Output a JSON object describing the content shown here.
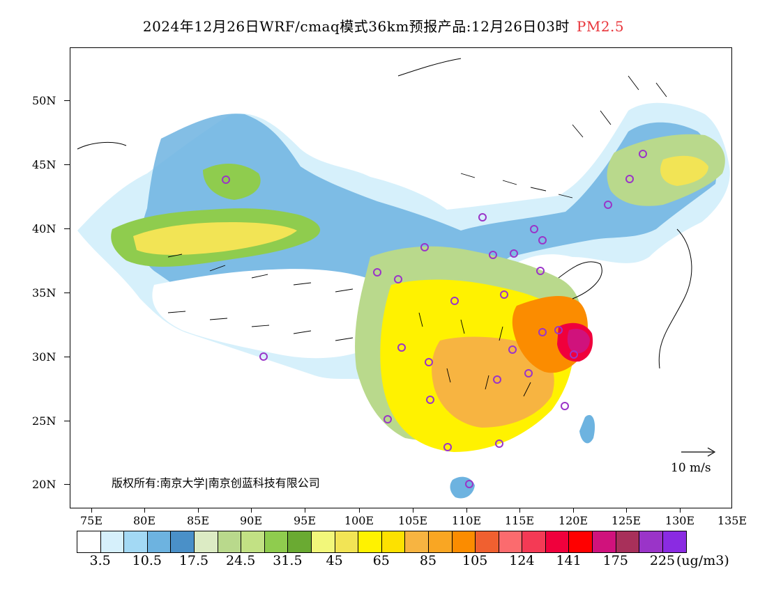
{
  "header": {
    "title": "2024年12月26日WRF/cmaq模式36km预报产品:12月26日03时",
    "pollutant": "PM2.5"
  },
  "axes": {
    "lat_labels": [
      "50N",
      "45N",
      "40N",
      "35N",
      "30N",
      "25N",
      "20N"
    ],
    "lon_labels": [
      "75E",
      "80E",
      "85E",
      "90E",
      "95E",
      "100E",
      "105E",
      "110E",
      "115E",
      "120E",
      "125E",
      "130E",
      "135E"
    ]
  },
  "legend": {
    "colors": [
      "#ffffff",
      "#d6f0fb",
      "#a3d9f4",
      "#6db3e0",
      "#4a90c8",
      "#dcebc4",
      "#b9d98c",
      "#c2e184",
      "#8fcc4e",
      "#6aaa32",
      "#f2f77a",
      "#f2e455",
      "#fff200",
      "#fde100",
      "#f7b441",
      "#f9a623",
      "#fb8c00",
      "#f06030",
      "#fb6b6e",
      "#f43a55",
      "#f0003c",
      "#ff0000",
      "#d0127c",
      "#a8305a",
      "#9a34c8",
      "#8a2be2"
    ],
    "tick_labels": [
      "3.5",
      "10.5",
      "17.5",
      "24.5",
      "31.5",
      "45",
      "65",
      "85",
      "105",
      "124",
      "141",
      "175",
      "225"
    ],
    "unit": "(ug/m3)"
  },
  "annotations": {
    "copyright": "版权所有:南京大学|南京创蓝科技有限公司",
    "wind_scale": "10 m/s"
  }
}
